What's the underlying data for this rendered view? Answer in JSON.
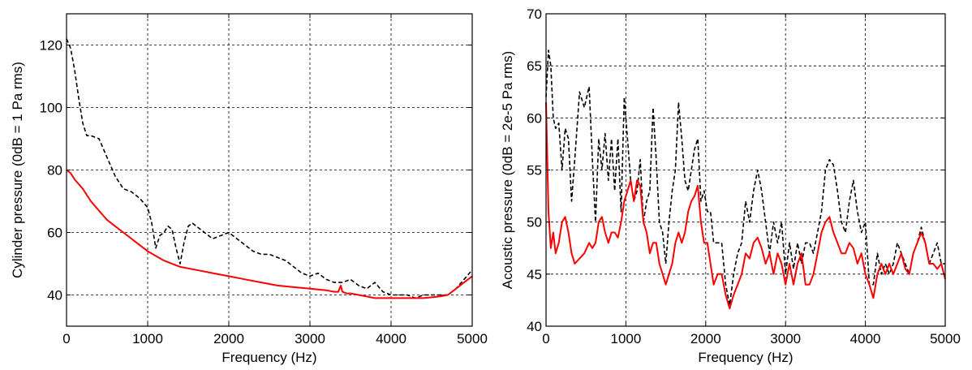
{
  "chart_data": [
    {
      "type": "line",
      "xlabel": "Frequency (Hz)",
      "ylabel": "Cylinder pressure (0dB = 1 Pa rms)",
      "xlim": [
        0,
        5000
      ],
      "ylim": [
        30,
        130
      ],
      "xticks": [
        0,
        1000,
        2000,
        3000,
        4000,
        5000
      ],
      "yticks": [
        40,
        60,
        80,
        100,
        120
      ],
      "grid": true,
      "series": [
        {
          "style": "dashed",
          "color": "#000000",
          "x": [
            0,
            50,
            100,
            150,
            200,
            250,
            300,
            400,
            500,
            600,
            700,
            800,
            900,
            1000,
            1050,
            1100,
            1150,
            1200,
            1250,
            1300,
            1350,
            1400,
            1450,
            1500,
            1550,
            1600,
            1700,
            1800,
            1900,
            2000,
            2100,
            2200,
            2300,
            2400,
            2500,
            2600,
            2700,
            2800,
            2900,
            3000,
            3100,
            3200,
            3300,
            3400,
            3500,
            3600,
            3700,
            3800,
            3900,
            4000,
            4100,
            4200,
            4300,
            4400,
            4500,
            4600,
            4700,
            4800,
            4900,
            5000
          ],
          "y": [
            122,
            119,
            112,
            103,
            95,
            91,
            91,
            90,
            84,
            78,
            74,
            73,
            71,
            68,
            63,
            55,
            59,
            60,
            62,
            61,
            55,
            50,
            57,
            62,
            63,
            62,
            60,
            58,
            59,
            60,
            58,
            56,
            54,
            53,
            53,
            52,
            51,
            49,
            47,
            46,
            47,
            45,
            44,
            44,
            45,
            43,
            42,
            44,
            41,
            40,
            40,
            40,
            39,
            40,
            40,
            40,
            40,
            42,
            45,
            48
          ]
        },
        {
          "style": "solid",
          "color": "#ff0000",
          "x": [
            0,
            50,
            100,
            200,
            300,
            400,
            500,
            600,
            700,
            800,
            900,
            1000,
            1200,
            1400,
            1600,
            1800,
            2000,
            2200,
            2400,
            2600,
            2800,
            3000,
            3200,
            3300,
            3350,
            3380,
            3400,
            3450,
            3500,
            3600,
            3700,
            3800,
            3900,
            4000,
            4200,
            4400,
            4600,
            4700,
            4800,
            4900,
            5000
          ],
          "y": [
            80,
            79,
            77,
            74,
            70,
            67,
            64,
            62,
            60,
            58,
            56,
            54,
            51,
            49,
            48,
            47,
            46,
            45,
            44,
            43,
            42.5,
            42,
            41.5,
            41,
            41,
            43,
            41,
            40.5,
            40.5,
            40,
            39.5,
            39,
            39,
            39,
            39,
            39,
            39.5,
            40,
            42,
            44,
            46
          ]
        }
      ]
    },
    {
      "type": "line",
      "xlabel": "Frequency (Hz)",
      "ylabel": "Acoustic pressure (0dB = 2e-5 Pa rms)",
      "xlim": [
        0,
        5000
      ],
      "ylim": [
        40,
        70
      ],
      "xticks": [
        0,
        1000,
        2000,
        3000,
        4000,
        5000
      ],
      "yticks": [
        40,
        45,
        50,
        55,
        60,
        65,
        70
      ],
      "grid": true,
      "series": [
        {
          "style": "dashed",
          "color": "#000000",
          "x": [
            0,
            30,
            60,
            90,
            120,
            160,
            200,
            240,
            280,
            320,
            360,
            420,
            480,
            540,
            580,
            620,
            660,
            700,
            740,
            780,
            820,
            860,
            900,
            940,
            980,
            1020,
            1060,
            1100,
            1140,
            1180,
            1220,
            1260,
            1300,
            1340,
            1380,
            1420,
            1460,
            1500,
            1540,
            1580,
            1620,
            1660,
            1700,
            1740,
            1780,
            1820,
            1860,
            1900,
            1940,
            1980,
            2020,
            2060,
            2100,
            2150,
            2200,
            2250,
            2300,
            2350,
            2400,
            2450,
            2500,
            2550,
            2600,
            2650,
            2700,
            2750,
            2800,
            2850,
            2900,
            2950,
            3000,
            3050,
            3100,
            3150,
            3200,
            3250,
            3300,
            3350,
            3400,
            3450,
            3500,
            3550,
            3600,
            3650,
            3700,
            3750,
            3800,
            3850,
            3900,
            3950,
            4000,
            4050,
            4100,
            4150,
            4200,
            4250,
            4300,
            4350,
            4400,
            4450,
            4500,
            4550,
            4600,
            4650,
            4700,
            4750,
            4800,
            4850,
            4900,
            4950,
            5000
          ],
          "y": [
            62,
            66.5,
            65,
            60,
            59,
            59.5,
            55,
            59,
            58,
            52,
            56,
            62.5,
            61,
            63,
            56,
            50,
            58,
            55,
            58.5,
            54,
            58,
            53,
            58,
            51,
            62,
            58,
            54,
            52,
            53,
            56,
            50,
            52,
            53,
            61,
            56,
            50,
            49,
            46,
            50,
            53,
            55,
            61.5,
            58,
            54,
            53,
            55,
            57,
            58,
            52,
            53,
            51,
            51,
            48,
            48,
            48,
            44,
            42,
            45,
            47,
            48,
            52,
            50,
            53,
            55,
            53,
            50,
            47,
            50,
            48,
            50,
            45,
            48,
            45.5,
            48,
            46,
            48,
            48,
            47,
            49,
            51,
            55,
            56,
            55.5,
            53,
            50,
            49,
            52,
            54,
            51,
            49,
            50,
            44,
            44,
            47,
            45,
            46,
            45,
            46,
            48,
            47,
            46,
            45,
            47,
            48,
            49.5,
            48,
            46,
            47,
            48,
            46,
            46
          ]
        },
        {
          "style": "solid",
          "color": "#ff0000",
          "x": [
            0,
            30,
            60,
            90,
            120,
            160,
            200,
            240,
            280,
            320,
            360,
            420,
            480,
            540,
            580,
            620,
            660,
            700,
            740,
            780,
            820,
            860,
            900,
            940,
            980,
            1020,
            1060,
            1100,
            1140,
            1180,
            1220,
            1260,
            1300,
            1340,
            1380,
            1420,
            1460,
            1500,
            1540,
            1580,
            1620,
            1660,
            1700,
            1740,
            1780,
            1820,
            1860,
            1900,
            1940,
            1980,
            2020,
            2060,
            2100,
            2150,
            2200,
            2250,
            2300,
            2350,
            2400,
            2450,
            2500,
            2550,
            2600,
            2650,
            2700,
            2750,
            2800,
            2850,
            2900,
            2950,
            3000,
            3050,
            3100,
            3150,
            3200,
            3250,
            3300,
            3350,
            3400,
            3450,
            3500,
            3550,
            3600,
            3650,
            3700,
            3750,
            3800,
            3850,
            3900,
            3950,
            4000,
            4050,
            4100,
            4150,
            4200,
            4250,
            4300,
            4350,
            4400,
            4450,
            4500,
            4550,
            4600,
            4650,
            4700,
            4750,
            4800,
            4850,
            4900,
            4950,
            5000
          ],
          "y": [
            61.5,
            51,
            47.5,
            49,
            47,
            48,
            50,
            50.5,
            49,
            47,
            46,
            46.5,
            47,
            48,
            47.5,
            48,
            50,
            50.5,
            49,
            48,
            49,
            49,
            48.5,
            50,
            52,
            53,
            54,
            52,
            54,
            53.5,
            50,
            49,
            47,
            48,
            48,
            46,
            45,
            44,
            45,
            46,
            48,
            49,
            48,
            49,
            51,
            52,
            52.5,
            53.5,
            50,
            48,
            48,
            46,
            44,
            45,
            45,
            43,
            41.7,
            43,
            44,
            45,
            47,
            46.5,
            48,
            48.5,
            47.5,
            46,
            47,
            45,
            47,
            46,
            44,
            46,
            44,
            46,
            47,
            44,
            44,
            45,
            47,
            49,
            50,
            50.5,
            49,
            48,
            47,
            47,
            48,
            47.5,
            46,
            47,
            45,
            44,
            42.7,
            45,
            46,
            45,
            46,
            45,
            46,
            47,
            45.5,
            45,
            47,
            48,
            49,
            48,
            46,
            46,
            45.5,
            46,
            44.5
          ]
        }
      ]
    }
  ]
}
